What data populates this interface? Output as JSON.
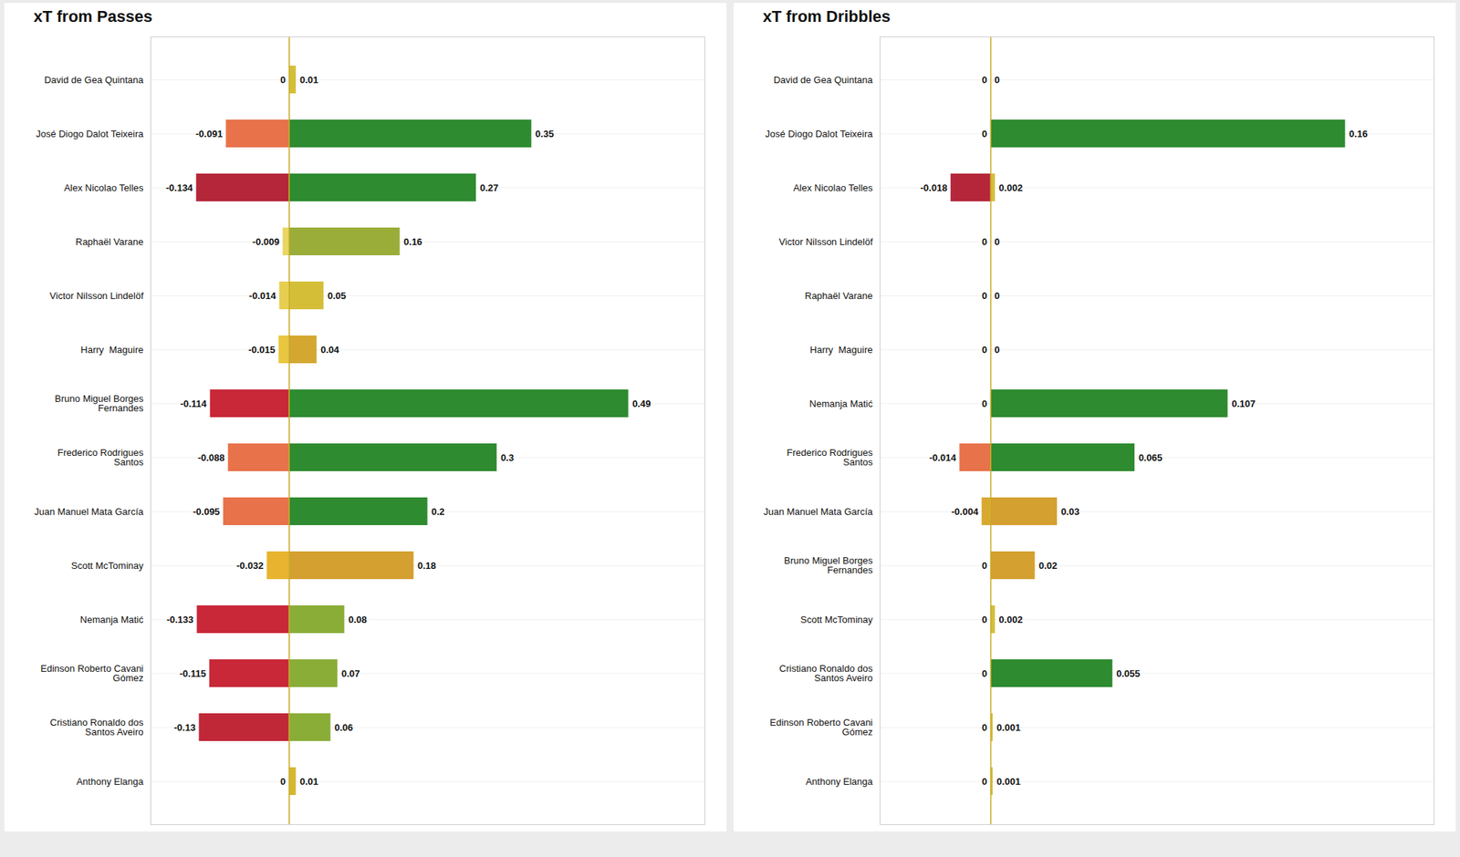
{
  "chart_data": [
    {
      "type": "bar",
      "title": "xT from Passes",
      "orientation": "horizontal",
      "data_labels": true,
      "tick_labels": "y",
      "grid": false,
      "categories": [
        "David de Gea Quintana",
        "José Diogo Dalot Teixeira",
        "Alex Nicolao Telles",
        "Raphaël Varane",
        "Victor Nilsson Lindelöf",
        "Harry  Maguire",
        "Bruno Miguel Borges\nFernandes",
        "Frederico Rodrigues\nSantos",
        "Juan Manuel Mata García",
        "Scott McTominay",
        "Nemanja Matić",
        "Edinson Roberto Cavani\nGómez",
        "Cristiano Ronaldo dos\nSantos Aveiro",
        "Anthony Elanga"
      ],
      "series": [
        {
          "values": [
            0.0,
            -0.091,
            -0.134,
            -0.009,
            -0.014,
            -0.015,
            -0.114,
            -0.088,
            -0.095,
            -0.032,
            -0.133,
            -0.115,
            -0.13,
            0.0
          ],
          "colors": [
            "#dddddd",
            "#e8724a",
            "#b5263a",
            "#e8d660",
            "#e8ce50",
            "#e8c640",
            "#c82838",
            "#e8724a",
            "#e8724a",
            "#e8b430",
            "#c82838",
            "#c82838",
            "#c02838",
            "#dddddd"
          ]
        },
        {
          "values": [
            0.01,
            0.35,
            0.27,
            0.16,
            0.05,
            0.04,
            0.49,
            0.3,
            0.2,
            0.18,
            0.08,
            0.07,
            0.06,
            0.01
          ],
          "colors": [
            "#d4be38",
            "#2e8b30",
            "#2e8b30",
            "#9aad38",
            "#d4be38",
            "#d4a830",
            "#2e8b30",
            "#2e8b30",
            "#2e8b30",
            "#d4a030",
            "#8aad38",
            "#8aad38",
            "#8aad38",
            "#d4b830"
          ]
        }
      ],
      "xlim": [
        -0.2,
        0.6
      ]
    },
    {
      "type": "bar",
      "title": "xT from Dribbles",
      "orientation": "horizontal",
      "data_labels": true,
      "tick_labels": "y",
      "grid": false,
      "categories": [
        "David de Gea Quintana",
        "José Diogo Dalot Teixeira",
        "Alex Nicolao Telles",
        "Victor Nilsson Lindelöf",
        "Raphaël Varane",
        "Harry  Maguire",
        "Nemanja Matić",
        "Frederico Rodrigues\nSantos",
        "Juan Manuel Mata García",
        "Bruno Miguel Borges\nFernandes",
        "Scott McTominay",
        "Cristiano Ronaldo dos\nSantos Aveiro",
        "Edinson Roberto Cavani\nGómez",
        "Anthony Elanga"
      ],
      "series": [
        {
          "values": [
            0.0,
            0.0,
            -0.018,
            0.0,
            0.0,
            0.0,
            0.0,
            -0.014,
            -0.004,
            0.0,
            0.0,
            0.0,
            0.0,
            0.0
          ],
          "colors": [
            "#dddddd",
            "#dddddd",
            "#b5263a",
            "#dddddd",
            "#dddddd",
            "#dddddd",
            "#dddddd",
            "#e8724a",
            "#d8a830",
            "#dddddd",
            "#dddddd",
            "#dddddd",
            "#dddddd",
            "#dddddd"
          ]
        },
        {
          "values": [
            0.0,
            0.16,
            0.002,
            0.0,
            0.0,
            0.0,
            0.107,
            0.065,
            0.03,
            0.02,
            0.002,
            0.055,
            0.001,
            0.001
          ],
          "colors": [
            "#dddddd",
            "#2e8b30",
            "#d4be38",
            "#dddddd",
            "#dddddd",
            "#dddddd",
            "#2e8b30",
            "#2e8b30",
            "#d4a030",
            "#d4a030",
            "#d4be38",
            "#2e8b30",
            "#d4be38",
            "#d4be38"
          ]
        }
      ],
      "xlim": [
        -0.05,
        0.2
      ]
    }
  ]
}
